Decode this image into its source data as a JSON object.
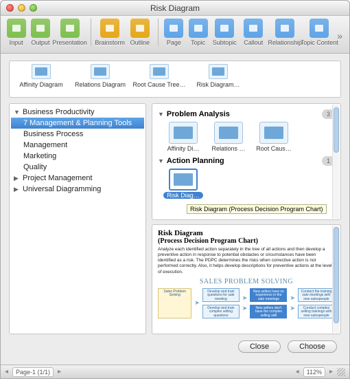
{
  "window": {
    "title": "Risk Diagram"
  },
  "toolbar": {
    "items": [
      {
        "label": "Input",
        "color": "#7fbf4d"
      },
      {
        "label": "Output",
        "color": "#7fbf4d"
      },
      {
        "label": "Presentation",
        "color": "#7fbf4d"
      },
      {
        "label": "Brainstorm",
        "color": "#e6a817"
      },
      {
        "label": "Outline",
        "color": "#e6a817"
      },
      {
        "label": "Page",
        "color": "#5ea4e8"
      },
      {
        "label": "Topic",
        "color": "#5ea4e8"
      },
      {
        "label": "Subtopic",
        "color": "#5ea4e8"
      },
      {
        "label": "Callout",
        "color": "#5ea4e8"
      },
      {
        "label": "Relationship",
        "color": "#5ea4e8"
      },
      {
        "label": "Topic Content",
        "color": "#5ea4e8"
      }
    ],
    "separators_after": [
      2,
      4
    ]
  },
  "recent": [
    {
      "label": "Affinity Diagram"
    },
    {
      "label": "Relations Diagram"
    },
    {
      "label": "Root Cause Tree…"
    },
    {
      "label": "Risk Diagram…"
    }
  ],
  "tree": [
    {
      "label": "Business Productivity",
      "expanded": true,
      "level": 0
    },
    {
      "label": "7 Management & Planning Tools",
      "level": 1,
      "selected": true
    },
    {
      "label": "Business Process",
      "level": 1
    },
    {
      "label": "Management",
      "level": 1
    },
    {
      "label": "Marketing",
      "level": 1
    },
    {
      "label": "Quality",
      "level": 1
    },
    {
      "label": "Project Management",
      "expanded": false,
      "level": 0
    },
    {
      "label": "Universal Diagramming",
      "expanded": false,
      "level": 0
    }
  ],
  "gallery": {
    "groups": [
      {
        "title": "Problem Analysis",
        "count": "3",
        "items": [
          {
            "label": "Affinity Di…"
          },
          {
            "label": "Relations …"
          },
          {
            "label": "Root Caus…"
          }
        ]
      },
      {
        "title": "Action Planning",
        "count": "1",
        "items": [
          {
            "label": "Risk Diag…",
            "selected": true
          }
        ]
      }
    ],
    "tooltip": "Risk Diagram (Process Decision Program Chart)"
  },
  "preview": {
    "title1": "Risk Diagram",
    "title2": "(Process Decision Program Chart)",
    "desc": "Analyze each identified action separately in the tree of all actions and then develop a preventive action in response to potential obstacles or circumstances have been identified as a risk. The PDPC determines the risks when corrective action is not performed correctly. Also, it helps develop descriptions for preventive actions at the level of execution.",
    "figure_title": "SALES PROBLEM SOLVING",
    "flow": {
      "root": "Sales Problem Solving",
      "r1": [
        "Develop and train questions for sale meeting",
        "New sellers have no experience in the sale meetings",
        "Conduct the training sale meetings with new salespeople"
      ],
      "r2": [
        "Develop and train complex selling questions",
        "New sellers don't have the complex selling skill",
        "Conduct complex selling trainings with new salespeople"
      ]
    }
  },
  "buttons": {
    "close": "Close",
    "choose": "Choose"
  },
  "statusbar": {
    "page": "Page-1 (1/1)",
    "zoom": "112%"
  }
}
